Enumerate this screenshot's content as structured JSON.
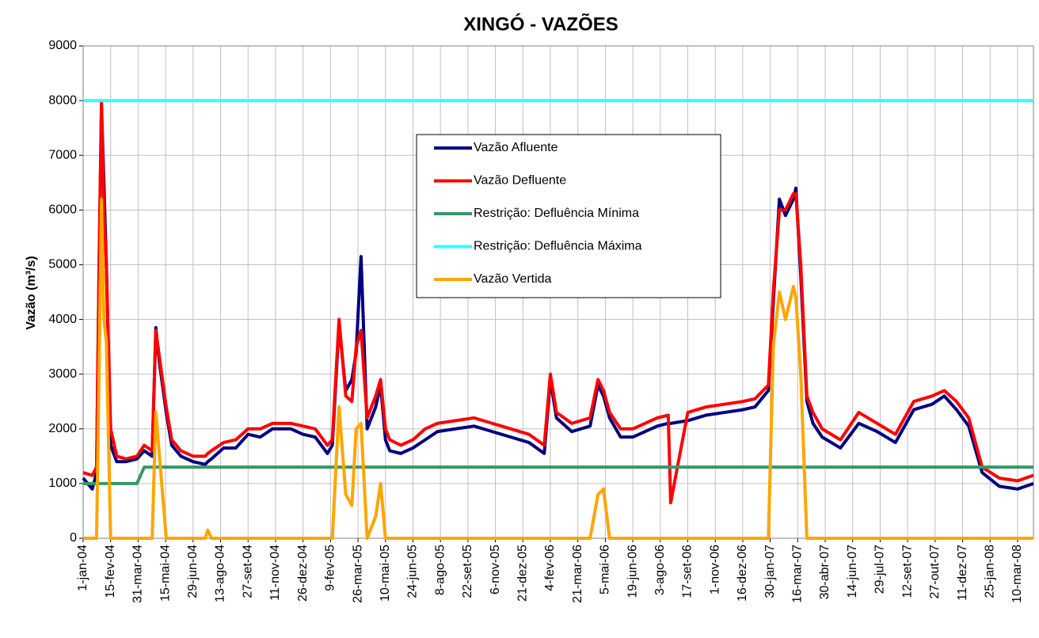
{
  "chart_data": {
    "type": "line",
    "title": "XINGÓ - VAZÕES",
    "ylabel": "Vazão (m³/s)",
    "legend": "center",
    "grid": true,
    "x": [
      0,
      15,
      22,
      26,
      30,
      34,
      38,
      45,
      55,
      70,
      88,
      100,
      113,
      119,
      125,
      136,
      145,
      160,
      180,
      200,
      204,
      210,
      230,
      250,
      270,
      290,
      310,
      340,
      360,
      380,
      400,
      408,
      419,
      430,
      440,
      447,
      455,
      465,
      479,
      487,
      495,
      502,
      520,
      540,
      560,
      580,
      610,
      640,
      670,
      700,
      730,
      755,
      765,
      775,
      800,
      830,
      843,
      852,
      862,
      880,
      900,
      940,
      958,
      962,
      990,
      1020,
      1050,
      1080,
      1100,
      1122,
      1130,
      1140,
      1150,
      1163,
      1167,
      1175,
      1185,
      1195,
      1210,
      1240,
      1270,
      1300,
      1330,
      1360,
      1390,
      1410,
      1430,
      1450,
      1472,
      1500,
      1530,
      1556
    ],
    "xlim": [
      0,
      1556
    ],
    "xticks": [
      {
        "value": 0,
        "label": "1-jan-04"
      },
      {
        "value": 45,
        "label": "15-fev-04"
      },
      {
        "value": 90,
        "label": "31-mar-04"
      },
      {
        "value": 135,
        "label": "15-mai-04"
      },
      {
        "value": 180,
        "label": "29-jun-04"
      },
      {
        "value": 225,
        "label": "13-ago-04"
      },
      {
        "value": 270,
        "label": "27-set-04"
      },
      {
        "value": 315,
        "label": "11-nov-04"
      },
      {
        "value": 360,
        "label": "26-dez-04"
      },
      {
        "value": 405,
        "label": "9-fev-05"
      },
      {
        "value": 450,
        "label": "26-mar-05"
      },
      {
        "value": 495,
        "label": "10-mai-05"
      },
      {
        "value": 540,
        "label": "24-jun-05"
      },
      {
        "value": 585,
        "label": "8-ago-05"
      },
      {
        "value": 630,
        "label": "22-set-05"
      },
      {
        "value": 675,
        "label": "6-nov-05"
      },
      {
        "value": 720,
        "label": "21-dez-05"
      },
      {
        "value": 765,
        "label": "4-fev-06"
      },
      {
        "value": 810,
        "label": "21-mar-06"
      },
      {
        "value": 855,
        "label": "5-mai-06"
      },
      {
        "value": 900,
        "label": "19-jun-06"
      },
      {
        "value": 945,
        "label": "3-ago-06"
      },
      {
        "value": 990,
        "label": "17-set-06"
      },
      {
        "value": 1035,
        "label": "1-nov-06"
      },
      {
        "value": 1080,
        "label": "16-dez-06"
      },
      {
        "value": 1125,
        "label": "30-jan-07"
      },
      {
        "value": 1170,
        "label": "16-mar-07"
      },
      {
        "value": 1215,
        "label": "30-abr-07"
      },
      {
        "value": 1260,
        "label": "14-jun-07"
      },
      {
        "value": 1305,
        "label": "29-jul-07"
      },
      {
        "value": 1350,
        "label": "12-set-07"
      },
      {
        "value": 1395,
        "label": "27-out-07"
      },
      {
        "value": 1440,
        "label": "11-dez-07"
      },
      {
        "value": 1485,
        "label": "25-jan-08"
      },
      {
        "value": 1530,
        "label": "10-mar-08"
      }
    ],
    "ylim": [
      0,
      9000
    ],
    "yticks": [
      0,
      1000,
      2000,
      3000,
      4000,
      5000,
      6000,
      7000,
      8000,
      9000
    ],
    "series": [
      {
        "name": "Vazão Afluente",
        "color": "#000080",
        "values": [
          1100,
          900,
          1200,
          4800,
          7900,
          6500,
          5000,
          1700,
          1400,
          1400,
          1450,
          1600,
          1500,
          3850,
          3200,
          2300,
          1700,
          1500,
          1400,
          1350,
          1400,
          1450,
          1650,
          1650,
          1900,
          1850,
          2000,
          2000,
          1900,
          1850,
          1550,
          1700,
          3900,
          2700,
          2900,
          3400,
          5150,
          2000,
          2400,
          2800,
          1800,
          1600,
          1550,
          1650,
          1800,
          1950,
          2000,
          2050,
          1950,
          1850,
          1750,
          1550,
          2900,
          2200,
          1950,
          2050,
          2800,
          2600,
          2200,
          1850,
          1850,
          2050,
          2100,
          2100,
          2150,
          2250,
          2300,
          2350,
          2400,
          2700,
          4300,
          6200,
          5900,
          6200,
          6400,
          4800,
          2500,
          2100,
          1850,
          1650,
          2100,
          1950,
          1750,
          2350,
          2450,
          2600,
          2350,
          2050,
          1200,
          950,
          900,
          1000
        ]
      },
      {
        "name": "Vazão Defluente",
        "color": "#ff0000",
        "values": [
          1200,
          1150,
          1300,
          5000,
          8000,
          6000,
          5000,
          2000,
          1500,
          1450,
          1500,
          1700,
          1600,
          3800,
          3300,
          2400,
          1800,
          1600,
          1500,
          1500,
          1550,
          1600,
          1750,
          1800,
          2000,
          2000,
          2100,
          2100,
          2050,
          2000,
          1700,
          1800,
          4000,
          2600,
          2500,
          3500,
          3800,
          2200,
          2600,
          2900,
          2000,
          1800,
          1700,
          1800,
          2000,
          2100,
          2150,
          2200,
          2100,
          2000,
          1900,
          1700,
          3000,
          2300,
          2100,
          2200,
          2900,
          2700,
          2300,
          2000,
          2000,
          2200,
          2250,
          650,
          2300,
          2400,
          2450,
          2500,
          2550,
          2800,
          4500,
          6000,
          6000,
          6300,
          6300,
          5000,
          2600,
          2300,
          2000,
          1800,
          2300,
          2100,
          1900,
          2500,
          2600,
          2700,
          2500,
          2200,
          1300,
          1100,
          1050,
          1150
        ]
      },
      {
        "name": "Restrição: Defluência Mínima",
        "color": "#339966",
        "values": [
          1000,
          1000,
          1000,
          1000,
          1000,
          1000,
          1000,
          1000,
          1000,
          1000,
          1000,
          1300,
          1300,
          1300,
          1300,
          1300,
          1300,
          1300,
          1300,
          1300,
          1300,
          1300,
          1300,
          1300,
          1300,
          1300,
          1300,
          1300,
          1300,
          1300,
          1300,
          1300,
          1300,
          1300,
          1300,
          1300,
          1300,
          1300,
          1300,
          1300,
          1300,
          1300,
          1300,
          1300,
          1300,
          1300,
          1300,
          1300,
          1300,
          1300,
          1300,
          1300,
          1300,
          1300,
          1300,
          1300,
          1300,
          1300,
          1300,
          1300,
          1300,
          1300,
          1300,
          1300,
          1300,
          1300,
          1300,
          1300,
          1300,
          1300,
          1300,
          1300,
          1300,
          1300,
          1300,
          1300,
          1300,
          1300,
          1300,
          1300,
          1300,
          1300,
          1300,
          1300,
          1300,
          1300,
          1300,
          1300,
          1300,
          1300,
          1300,
          1300
        ]
      },
      {
        "name": "Restrição: Defluência Máxima",
        "color": "#33ffff",
        "values": [
          8000,
          8000,
          8000,
          8000,
          8000,
          8000,
          8000,
          8000,
          8000,
          8000,
          8000,
          8000,
          8000,
          8000,
          8000,
          8000,
          8000,
          8000,
          8000,
          8000,
          8000,
          8000,
          8000,
          8000,
          8000,
          8000,
          8000,
          8000,
          8000,
          8000,
          8000,
          8000,
          8000,
          8000,
          8000,
          8000,
          8000,
          8000,
          8000,
          8000,
          8000,
          8000,
          8000,
          8000,
          8000,
          8000,
          8000,
          8000,
          8000,
          8000,
          8000,
          8000,
          8000,
          8000,
          8000,
          8000,
          8000,
          8000,
          8000,
          8000,
          8000,
          8000,
          8000,
          8000,
          8000,
          8000,
          8000,
          8000,
          8000,
          8000,
          8000,
          8000,
          8000,
          8000,
          8000,
          8000,
          8000,
          8000,
          8000,
          8000,
          8000,
          8000,
          8000,
          8000,
          8000,
          8000,
          8000,
          8000,
          8000,
          8000,
          8000,
          8000
        ]
      },
      {
        "name": "Vazão Vertida",
        "color": "#ffa500",
        "values": [
          0,
          0,
          0,
          3000,
          6200,
          4000,
          3600,
          0,
          0,
          0,
          0,
          0,
          0,
          2300,
          1500,
          0,
          0,
          0,
          0,
          0,
          150,
          0,
          0,
          0,
          0,
          0,
          0,
          0,
          0,
          0,
          0,
          0,
          2400,
          800,
          600,
          2000,
          2100,
          0,
          400,
          1000,
          0,
          0,
          0,
          0,
          0,
          0,
          0,
          0,
          0,
          0,
          0,
          0,
          0,
          0,
          0,
          0,
          800,
          900,
          0,
          0,
          0,
          0,
          0,
          0,
          0,
          0,
          0,
          0,
          0,
          0,
          3500,
          4500,
          4000,
          4600,
          4400,
          3000,
          0,
          0,
          0,
          0,
          0,
          0,
          0,
          0,
          0,
          0,
          0,
          0,
          0,
          0,
          0,
          0
        ]
      }
    ]
  }
}
